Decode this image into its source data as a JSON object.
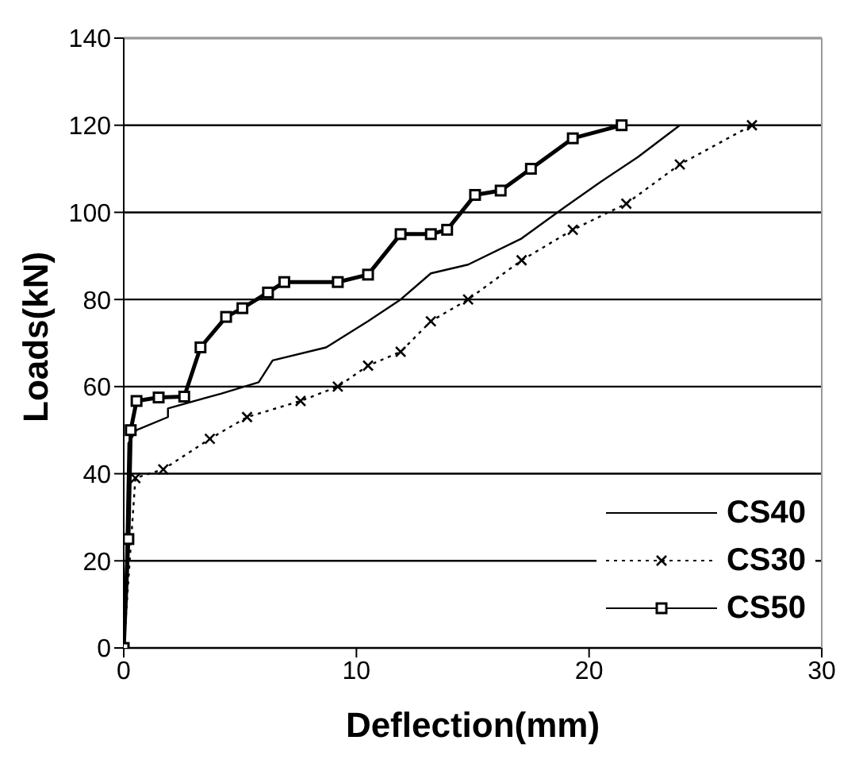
{
  "chart_data": {
    "type": "line",
    "xlabel": "Deflection(mm)",
    "ylabel": "Loads(kN)",
    "xlim": [
      0,
      30
    ],
    "xticks": [
      0,
      10,
      20,
      30
    ],
    "ylim": [
      0,
      140
    ],
    "yticks": [
      0,
      20,
      40,
      60,
      80,
      100,
      120,
      140
    ],
    "grid": "y",
    "legend": "bottom right",
    "series": [
      {
        "name": "CS40",
        "color": "#000000",
        "marker": "none",
        "line_style": "solid",
        "x": [
          0,
          0.1,
          0.2,
          0.55,
          1.9,
          1.9,
          4.2,
          5.8,
          6.4,
          8.7,
          10.5,
          11.9,
          13.2,
          14.8,
          17.1,
          18.9,
          20.5,
          22.1,
          23.9
        ],
        "values": [
          0,
          20,
          47,
          50,
          53,
          55,
          58.4,
          61,
          66,
          69,
          75,
          80,
          86,
          88,
          94,
          101,
          107,
          112.7,
          120
        ]
      },
      {
        "name": "CS30",
        "color": "#000000",
        "marker": "cross",
        "line_style": "dotted",
        "x": [
          0,
          0.5,
          1.7,
          3.7,
          5.3,
          7.6,
          9.2,
          10.5,
          11.9,
          13.2,
          14.8,
          17.1,
          19.3,
          21.6,
          23.9,
          27
        ],
        "values": [
          0,
          39,
          41,
          48,
          53,
          56.7,
          60,
          64.8,
          68,
          75,
          80,
          89,
          96,
          102,
          111,
          120
        ]
      },
      {
        "name": "CS50",
        "color": "#000000",
        "marker": "square",
        "line_style": "solid",
        "x": [
          0,
          0.2,
          0.3,
          0.55,
          1.5,
          2.6,
          3.3,
          4.4,
          5.1,
          6.2,
          6.9,
          9.2,
          10.5,
          11.9,
          13.2,
          13.9,
          15.1,
          16.2,
          17.5,
          19.3,
          21.4
        ],
        "values": [
          0,
          25,
          50,
          56.7,
          57.5,
          57.7,
          69,
          76,
          78,
          81.6,
          84,
          84,
          85.7,
          95,
          95,
          96,
          104,
          105,
          110,
          117,
          120
        ]
      }
    ]
  }
}
